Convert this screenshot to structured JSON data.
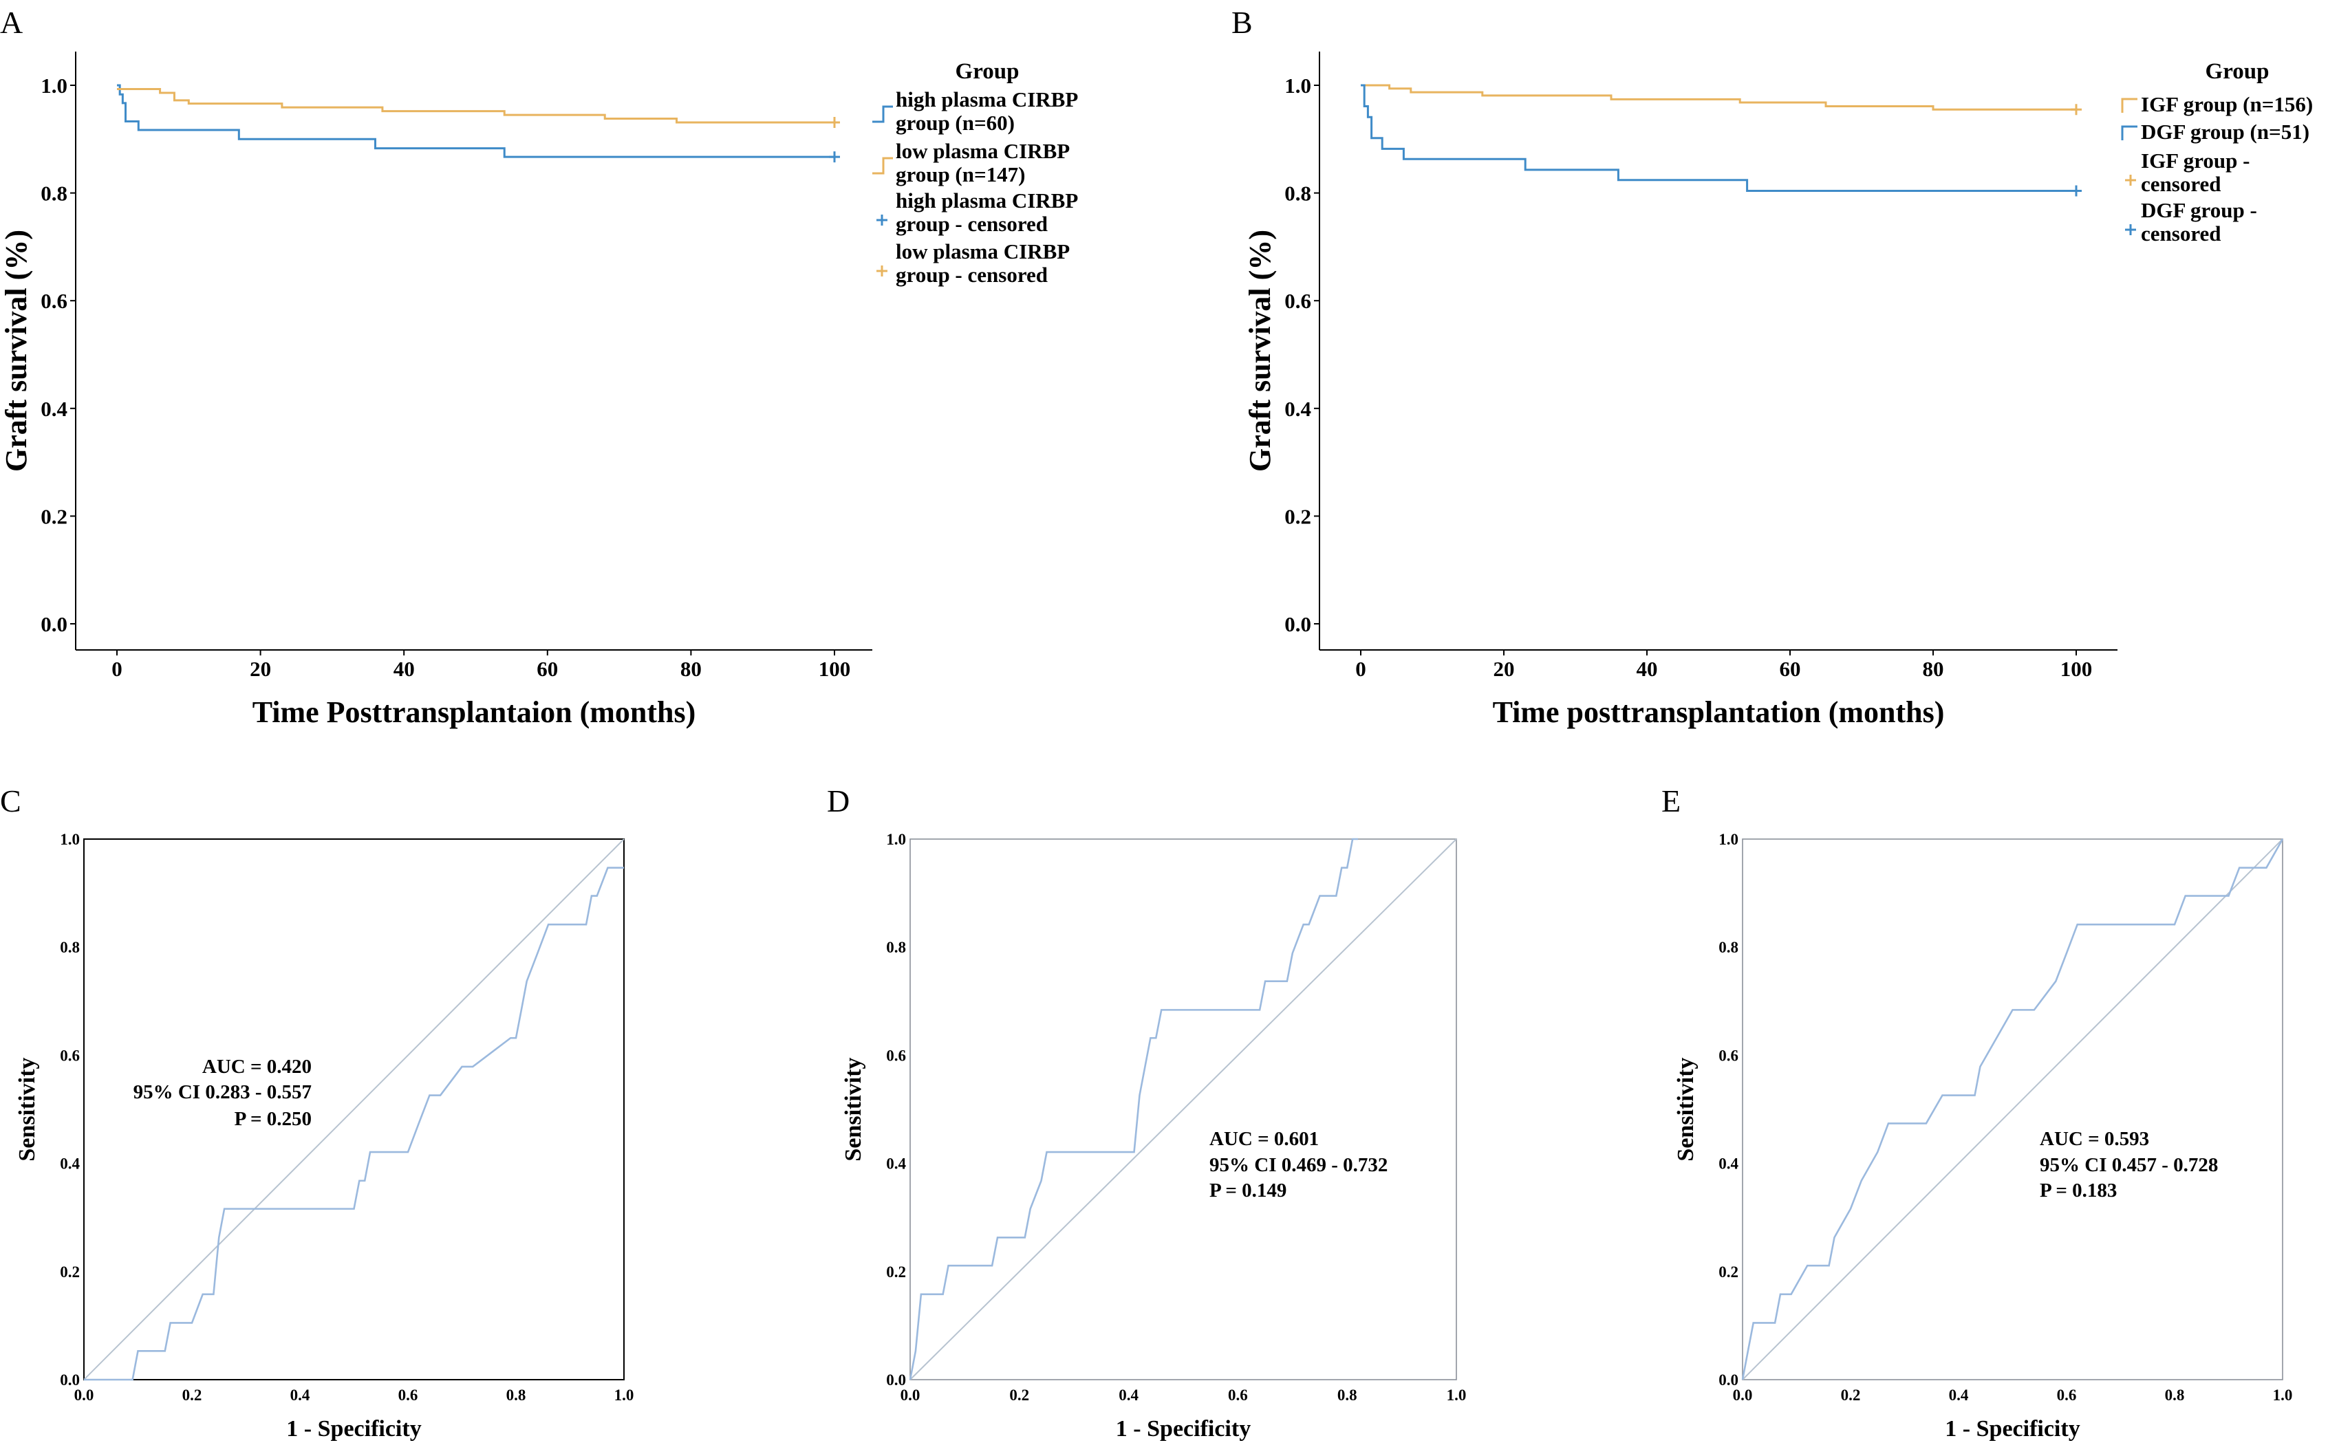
{
  "colors": {
    "orange": "#E8B45F",
    "blue": "#3F8BC8",
    "roc": "#9BB9DE",
    "diag": "#B7C3D0",
    "axis": "#000000"
  },
  "chart_data": [
    {
      "panel": "A",
      "type": "line",
      "subtype": "kaplan-meier",
      "xlabel": "Time Posttransplantaion (months)",
      "ylabel": "Graft survival (%)",
      "xlim": [
        0,
        100
      ],
      "ylim": [
        0,
        1
      ],
      "xticks": [
        "0",
        "20",
        "40",
        "60",
        "80",
        "100"
      ],
      "yticks": [
        "0.0",
        "0.2",
        "0.4",
        "0.6",
        "0.8",
        "1.0"
      ],
      "legend_title": "Group",
      "legend": [
        "high plasma CIRBP group (n=60)",
        "low plasma CIRBP group (n=147)",
        "high plasma CIRBP group - censored",
        "low plasma CIRBP group - censored"
      ],
      "series": [
        {
          "name": "high plasma CIRBP group (n=60)",
          "color": "blue",
          "x": [
            0,
            0.4,
            0.8,
            1.2,
            3,
            17,
            36,
            54,
            100
          ],
          "y": [
            1,
            0.983,
            0.967,
            0.933,
            0.917,
            0.9,
            0.883,
            0.867,
            0.867
          ]
        },
        {
          "name": "low plasma CIRBP group (n=147)",
          "color": "orange",
          "x": [
            0,
            6,
            8,
            10,
            23,
            37,
            54,
            68,
            78,
            100
          ],
          "y": [
            0.993,
            0.986,
            0.972,
            0.966,
            0.959,
            0.952,
            0.945,
            0.938,
            0.931,
            0.931
          ]
        }
      ]
    },
    {
      "panel": "B",
      "type": "line",
      "subtype": "kaplan-meier",
      "xlabel": "Time posttransplantation (months)",
      "ylabel": "Graft survival (%)",
      "xlim": [
        0,
        100
      ],
      "ylim": [
        0,
        1
      ],
      "xticks": [
        "0",
        "20",
        "40",
        "60",
        "80",
        "100"
      ],
      "yticks": [
        "0.0",
        "0.2",
        "0.4",
        "0.6",
        "0.8",
        "1.0"
      ],
      "legend_title": "Group",
      "legend": [
        "IGF group (n=156)",
        "DGF group (n=51)",
        "IGF group - censored",
        "DGF group - censored"
      ],
      "series": [
        {
          "name": "IGF group (n=156)",
          "color": "orange",
          "x": [
            0,
            4,
            7,
            17,
            35,
            53,
            65,
            80,
            100
          ],
          "y": [
            1,
            0.994,
            0.987,
            0.981,
            0.974,
            0.968,
            0.961,
            0.955,
            0.955
          ]
        },
        {
          "name": "DGF group (n=51)",
          "color": "blue",
          "x": [
            0,
            0.5,
            1,
            1.5,
            3,
            6,
            23,
            36,
            54,
            100
          ],
          "y": [
            1,
            0.961,
            0.941,
            0.902,
            0.882,
            0.863,
            0.843,
            0.824,
            0.804,
            0.804
          ]
        }
      ]
    },
    {
      "panel": "C",
      "type": "line",
      "subtype": "roc",
      "xlabel": "1 - Specificity",
      "ylabel": "Sensitivity",
      "xlim": [
        0,
        1
      ],
      "ylim": [
        0,
        1
      ],
      "ticks": [
        "0.0",
        "0.2",
        "0.4",
        "0.6",
        "0.8",
        "1.0"
      ],
      "auc": "AUC = 0.420",
      "ci": "95% CI 0.283 - 0.557",
      "p": "P = 0.250",
      "x": [
        0,
        0.09,
        0.1,
        0.15,
        0.16,
        0.2,
        0.22,
        0.24,
        0.245,
        0.25,
        0.26,
        0.5,
        0.51,
        0.52,
        0.53,
        0.6,
        0.62,
        0.64,
        0.66,
        0.7,
        0.72,
        0.79,
        0.8,
        0.81,
        0.82,
        0.84,
        0.86,
        0.89,
        0.93,
        0.94,
        0.95,
        0.97,
        1
      ],
      "y": [
        0,
        0,
        0.053,
        0.053,
        0.105,
        0.105,
        0.158,
        0.158,
        0.211,
        0.263,
        0.316,
        0.316,
        0.368,
        0.368,
        0.421,
        0.421,
        0.474,
        0.526,
        0.526,
        0.579,
        0.579,
        0.632,
        0.632,
        0.684,
        0.737,
        0.789,
        0.842,
        0.842,
        0.842,
        0.895,
        0.895,
        0.947,
        0.947
      ]
    },
    {
      "panel": "D",
      "type": "line",
      "subtype": "roc",
      "xlabel": "1 - Specificity",
      "ylabel": "Sensitivity",
      "xlim": [
        0,
        1
      ],
      "ylim": [
        0,
        1
      ],
      "ticks": [
        "0.0",
        "0.2",
        "0.4",
        "0.6",
        "0.8",
        "1.0"
      ],
      "auc": "AUC = 0.601",
      "ci": "95% CI 0.469 - 0.732",
      "p": "P = 0.149",
      "x": [
        0,
        0.01,
        0.02,
        0.06,
        0.07,
        0.15,
        0.16,
        0.21,
        0.22,
        0.24,
        0.25,
        0.26,
        0.41,
        0.42,
        0.43,
        0.44,
        0.45,
        0.46,
        0.64,
        0.65,
        0.69,
        0.7,
        0.72,
        0.73,
        0.75,
        0.78,
        0.79,
        0.8,
        0.81,
        0.82
      ],
      "y": [
        0,
        0.053,
        0.158,
        0.158,
        0.211,
        0.211,
        0.263,
        0.263,
        0.316,
        0.368,
        0.421,
        0.421,
        0.421,
        0.526,
        0.579,
        0.632,
        0.632,
        0.684,
        0.684,
        0.737,
        0.737,
        0.789,
        0.842,
        0.842,
        0.895,
        0.895,
        0.947,
        0.947,
        1.0,
        1.0
      ]
    },
    {
      "panel": "E",
      "type": "line",
      "subtype": "roc",
      "xlabel": "1 - Specificity",
      "ylabel": "Sensitivity",
      "xlim": [
        0,
        1
      ],
      "ylim": [
        0,
        1
      ],
      "ticks": [
        "0.0",
        "0.2",
        "0.4",
        "0.6",
        "0.8",
        "1.0"
      ],
      "auc": "AUC = 0.593",
      "ci": "95% CI 0.457 - 0.728",
      "p": "P = 0.183",
      "x": [
        0,
        0.01,
        0.02,
        0.06,
        0.07,
        0.09,
        0.12,
        0.16,
        0.17,
        0.2,
        0.22,
        0.25,
        0.27,
        0.3,
        0.34,
        0.37,
        0.43,
        0.44,
        0.5,
        0.52,
        0.54,
        0.58,
        0.6,
        0.62,
        0.8,
        0.82,
        0.9,
        0.92,
        0.97,
        1
      ],
      "y": [
        0,
        0.053,
        0.105,
        0.105,
        0.158,
        0.158,
        0.211,
        0.211,
        0.263,
        0.316,
        0.368,
        0.421,
        0.474,
        0.474,
        0.474,
        0.526,
        0.526,
        0.579,
        0.684,
        0.684,
        0.684,
        0.737,
        0.789,
        0.842,
        0.842,
        0.895,
        0.895,
        0.947,
        0.947,
        1.0
      ]
    }
  ]
}
